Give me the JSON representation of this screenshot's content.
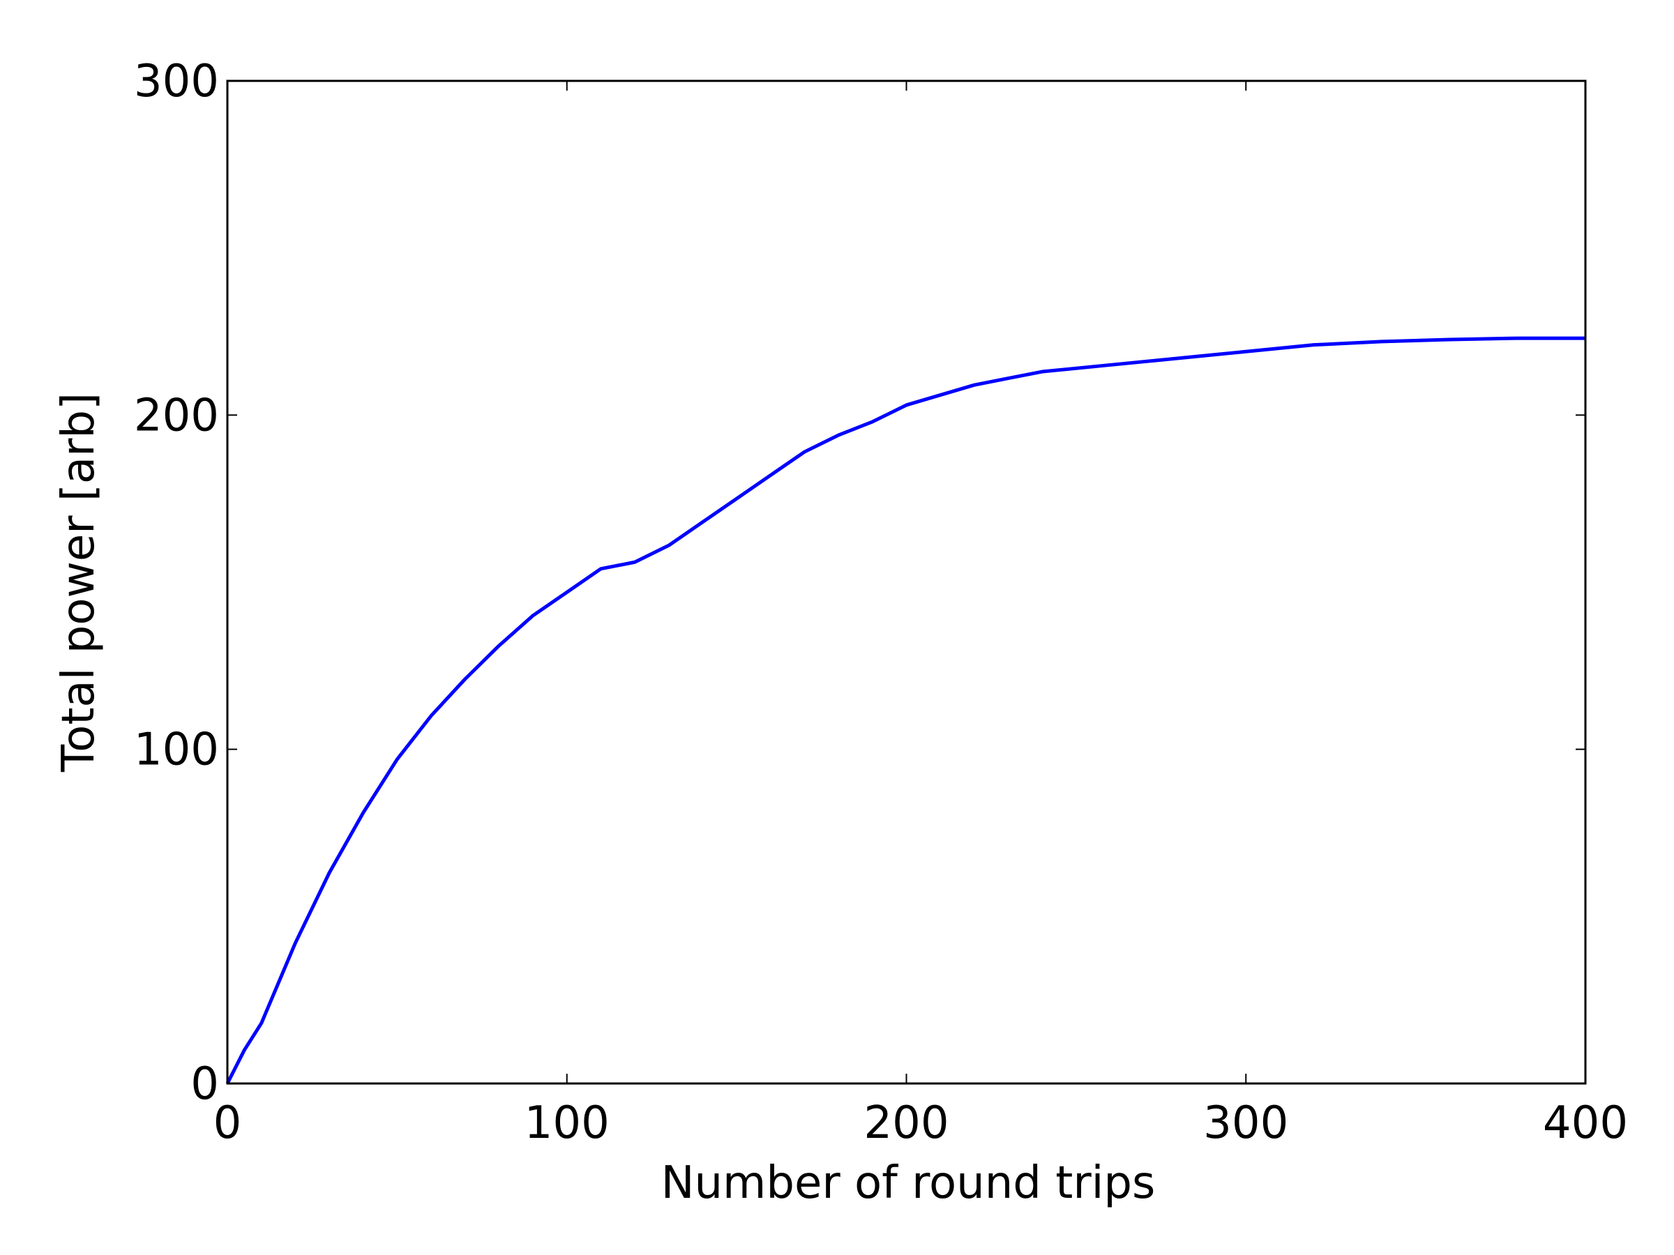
{
  "chart_data": {
    "type": "line",
    "xlabel": "Number of round trips",
    "ylabel": "Total power [arb]",
    "x": [
      0,
      5,
      10,
      20,
      30,
      40,
      50,
      60,
      70,
      80,
      90,
      100,
      110,
      120,
      130,
      140,
      150,
      160,
      170,
      180,
      190,
      200,
      210,
      220,
      230,
      240,
      260,
      280,
      300,
      320,
      340,
      360,
      380,
      400
    ],
    "series": [
      {
        "color": "#0000ff",
        "values": [
          0,
          10,
          18,
          42,
          63,
          81,
          97,
          110,
          121,
          131,
          140,
          147,
          154,
          156,
          161,
          168,
          175,
          182,
          189,
          194,
          198,
          203,
          206,
          209,
          211,
          213,
          215,
          217,
          219,
          221,
          222,
          222.6,
          223,
          223
        ]
      }
    ],
    "xlim": [
      0,
      400
    ],
    "xticks": [
      0,
      100,
      200,
      300,
      400
    ],
    "ylim": [
      0,
      300
    ],
    "yticks": [
      0,
      100,
      200,
      300
    ],
    "grid": false
  }
}
